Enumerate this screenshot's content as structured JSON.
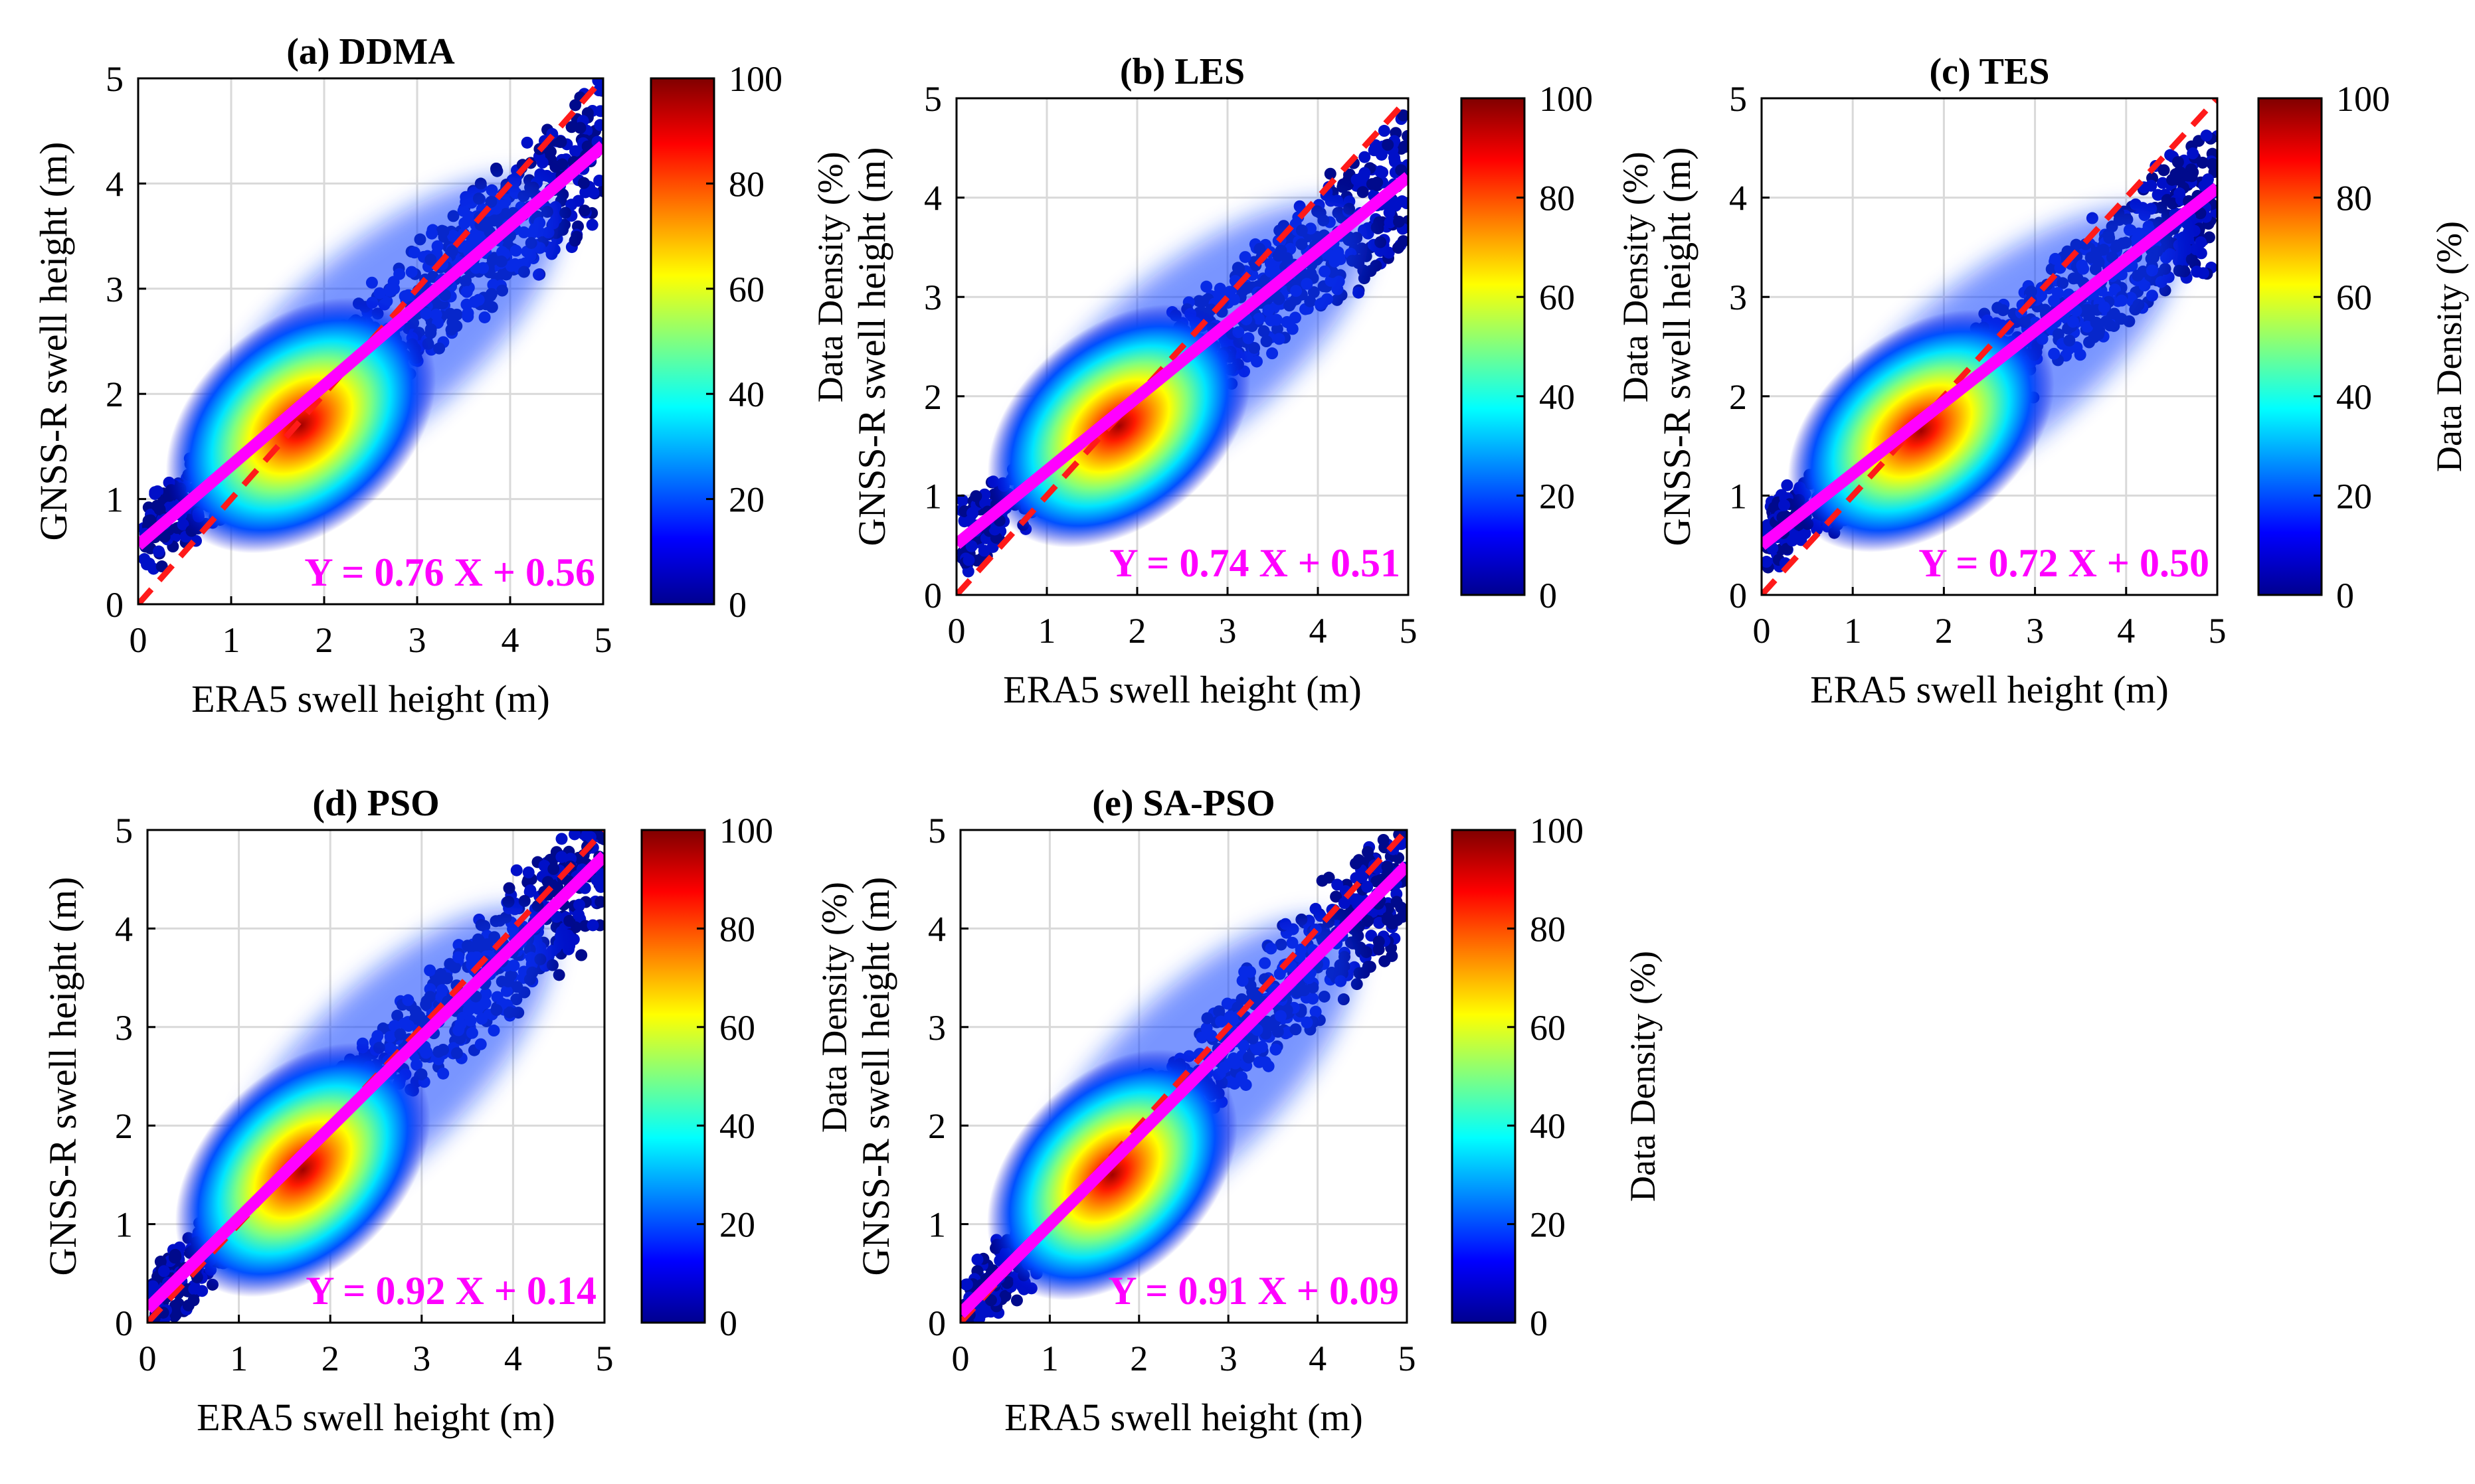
{
  "chart_data": [
    {
      "type": "scatter",
      "panel": "a",
      "title": "(a) DDMA",
      "xlabel": "ERA5 swell height (m)",
      "ylabel": "GNSS-R swell height (m)",
      "colorbar_label": "",
      "xlim": [
        0,
        5
      ],
      "ylim": [
        0,
        5
      ],
      "xticks": [
        "0",
        "1",
        "2",
        "3",
        "4",
        "5"
      ],
      "yticks": [
        "0",
        "1",
        "2",
        "3",
        "4",
        "5"
      ],
      "grid": true,
      "fit": {
        "slope": 0.76,
        "intercept": 0.56,
        "label": "Y = 0.76 X + 0.56",
        "color": "#ff00ff"
      },
      "identity_line": {
        "color": "#ff1a1a",
        "style": "dashed"
      },
      "density_peak": [
        1.75,
        1.7
      ],
      "colorbar": {
        "min": 0,
        "max": 100,
        "ticks": [
          "0",
          "20",
          "40",
          "60",
          "80",
          "100"
        ]
      }
    },
    {
      "type": "scatter",
      "panel": "b",
      "title": "(b) LES",
      "xlabel": "ERA5 swell height (m)",
      "ylabel": "GNSS-R swell height (m)",
      "ylabel_extra": "Data Density (%)",
      "colorbar_label": "",
      "xlim": [
        0,
        5
      ],
      "ylim": [
        0,
        5
      ],
      "xticks": [
        "0",
        "1",
        "2",
        "3",
        "4",
        "5"
      ],
      "yticks": [
        "0",
        "1",
        "2",
        "3",
        "4",
        "5"
      ],
      "grid": true,
      "fit": {
        "slope": 0.74,
        "intercept": 0.51,
        "label": "Y = 0.74 X + 0.51",
        "color": "#ff00ff"
      },
      "identity_line": {
        "color": "#ff1a1a",
        "style": "dashed"
      },
      "density_peak": [
        1.8,
        1.7
      ],
      "colorbar": {
        "min": 0,
        "max": 100,
        "ticks": [
          "0",
          "20",
          "40",
          "60",
          "80",
          "100"
        ]
      }
    },
    {
      "type": "scatter",
      "panel": "c",
      "title": "(c) TES",
      "xlabel": "ERA5 swell height (m)",
      "ylabel": "GNSS-R swell height (m)",
      "ylabel_extra": "Data Density (%)",
      "colorbar_label": "Data Density (%)",
      "xlim": [
        0,
        5
      ],
      "ylim": [
        0,
        5
      ],
      "xticks": [
        "0",
        "1",
        "2",
        "3",
        "4",
        "5"
      ],
      "yticks": [
        "0",
        "1",
        "2",
        "3",
        "4",
        "5"
      ],
      "grid": true,
      "fit": {
        "slope": 0.72,
        "intercept": 0.5,
        "label": "Y = 0.72 X + 0.50",
        "color": "#ff00ff"
      },
      "identity_line": {
        "color": "#ff1a1a",
        "style": "dashed"
      },
      "density_peak": [
        1.75,
        1.65
      ],
      "colorbar": {
        "min": 0,
        "max": 100,
        "ticks": [
          "0",
          "20",
          "40",
          "60",
          "80",
          "100"
        ]
      }
    },
    {
      "type": "scatter",
      "panel": "d",
      "title": "(d) PSO",
      "xlabel": "ERA5 swell height (m)",
      "ylabel": "GNSS-R swell height (m)",
      "colorbar_label": "",
      "xlim": [
        0,
        5
      ],
      "ylim": [
        0,
        5
      ],
      "xticks": [
        "0",
        "1",
        "2",
        "3",
        "4",
        "5"
      ],
      "yticks": [
        "0",
        "1",
        "2",
        "3",
        "4",
        "5"
      ],
      "grid": true,
      "fit": {
        "slope": 0.92,
        "intercept": 0.14,
        "label": "Y = 0.92 X + 0.14",
        "color": "#ff00ff"
      },
      "identity_line": {
        "color": "#ff1a1a",
        "style": "dashed"
      },
      "density_peak": [
        1.7,
        1.55
      ],
      "colorbar": {
        "min": 0,
        "max": 100,
        "ticks": [
          "0",
          "20",
          "40",
          "60",
          "80",
          "100"
        ]
      }
    },
    {
      "type": "scatter",
      "panel": "e",
      "title": "(e) SA-PSO",
      "xlabel": "ERA5 swell height (m)",
      "ylabel": "GNSS-R swell height (m)",
      "ylabel_extra": "Data Density (%)",
      "colorbar_label": "Data Density (%)",
      "xlim": [
        0,
        5
      ],
      "ylim": [
        0,
        5
      ],
      "xticks": [
        "0",
        "1",
        "2",
        "3",
        "4",
        "5"
      ],
      "yticks": [
        "0",
        "1",
        "2",
        "3",
        "4",
        "5"
      ],
      "grid": true,
      "fit": {
        "slope": 0.91,
        "intercept": 0.09,
        "label": "Y = 0.91 X + 0.09",
        "color": "#ff00ff"
      },
      "identity_line": {
        "color": "#ff1a1a",
        "style": "dashed"
      },
      "density_peak": [
        1.7,
        1.5
      ],
      "colorbar": {
        "min": 0,
        "max": 100,
        "ticks": [
          "0",
          "20",
          "40",
          "60",
          "80",
          "100"
        ]
      }
    }
  ]
}
